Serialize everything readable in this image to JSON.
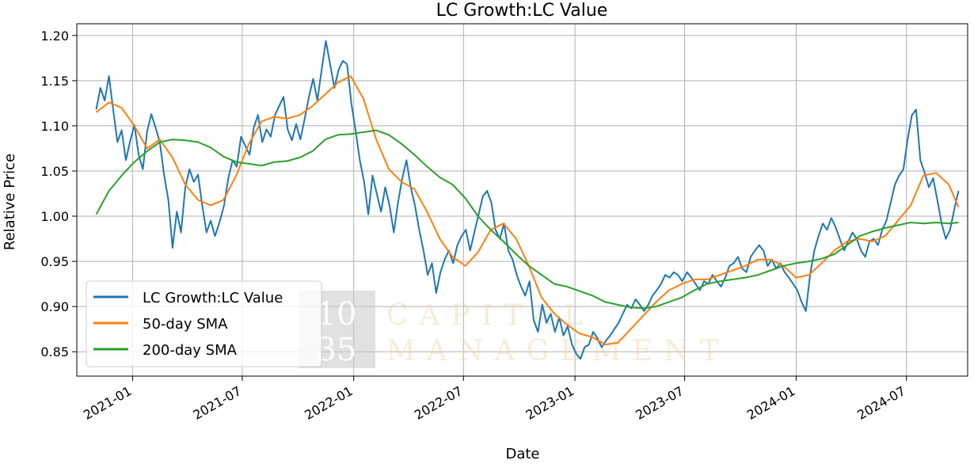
{
  "chart_data": {
    "type": "line",
    "title": "LC Growth:LC Value",
    "xlabel": "Date",
    "ylabel": "Relative Price",
    "x_range": [
      "2020-10-01",
      "2024-10-10"
    ],
    "ylim": [
      0.823,
      1.213
    ],
    "y_ticks": [
      0.85,
      0.9,
      0.95,
      1.0,
      1.05,
      1.1,
      1.15,
      1.2
    ],
    "y_tick_labels": [
      "0.85",
      "0.90",
      "0.95",
      "1.00",
      "1.05",
      "1.10",
      "1.15",
      "1.20"
    ],
    "x_ticks": [
      "2021-01-01",
      "2021-07-01",
      "2022-01-01",
      "2022-07-01",
      "2023-01-01",
      "2023-07-01",
      "2024-01-01",
      "2024-07-01"
    ],
    "x_tick_labels": [
      "2021-01",
      "2021-07",
      "2022-01",
      "2022-07",
      "2023-01",
      "2023-07",
      "2024-01",
      "2024-07"
    ],
    "grid": true,
    "legend": "lower left",
    "series": [
      {
        "name": "LC Growth:LC Value",
        "color": "#1f77b4",
        "x": [
          "2020-11-02",
          "2020-11-09",
          "2020-11-16",
          "2020-11-23",
          "2020-11-30",
          "2020-12-07",
          "2020-12-14",
          "2020-12-21",
          "2020-12-28",
          "2021-01-04",
          "2021-01-11",
          "2021-01-18",
          "2021-01-25",
          "2021-02-01",
          "2021-02-08",
          "2021-02-15",
          "2021-02-22",
          "2021-03-01",
          "2021-03-08",
          "2021-03-15",
          "2021-03-22",
          "2021-03-29",
          "2021-04-05",
          "2021-04-12",
          "2021-04-19",
          "2021-04-26",
          "2021-05-03",
          "2021-05-10",
          "2021-05-17",
          "2021-05-24",
          "2021-06-01",
          "2021-06-08",
          "2021-06-15",
          "2021-06-22",
          "2021-06-29",
          "2021-07-06",
          "2021-07-13",
          "2021-07-20",
          "2021-07-27",
          "2021-08-03",
          "2021-08-10",
          "2021-08-17",
          "2021-08-24",
          "2021-08-31",
          "2021-09-07",
          "2021-09-14",
          "2021-09-21",
          "2021-09-28",
          "2021-10-05",
          "2021-10-12",
          "2021-10-19",
          "2021-10-26",
          "2021-11-02",
          "2021-11-09",
          "2021-11-16",
          "2021-11-23",
          "2021-11-30",
          "2021-12-07",
          "2021-12-14",
          "2021-12-21",
          "2021-12-28",
          "2022-01-04",
          "2022-01-11",
          "2022-01-18",
          "2022-01-25",
          "2022-02-01",
          "2022-02-08",
          "2022-02-15",
          "2022-02-22",
          "2022-03-01",
          "2022-03-08",
          "2022-03-15",
          "2022-03-22",
          "2022-03-29",
          "2022-04-05",
          "2022-04-12",
          "2022-04-19",
          "2022-04-26",
          "2022-05-03",
          "2022-05-10",
          "2022-05-17",
          "2022-05-24",
          "2022-05-31",
          "2022-06-07",
          "2022-06-14",
          "2022-06-21",
          "2022-06-28",
          "2022-07-05",
          "2022-07-12",
          "2022-07-19",
          "2022-07-26",
          "2022-08-02",
          "2022-08-09",
          "2022-08-16",
          "2022-08-23",
          "2022-08-30",
          "2022-09-06",
          "2022-09-13",
          "2022-09-20",
          "2022-09-27",
          "2022-10-04",
          "2022-10-11",
          "2022-10-18",
          "2022-10-25",
          "2022-11-01",
          "2022-11-08",
          "2022-11-15",
          "2022-11-22",
          "2022-11-29",
          "2022-12-06",
          "2022-12-13",
          "2022-12-20",
          "2022-12-27",
          "2023-01-03",
          "2023-01-10",
          "2023-01-17",
          "2023-01-24",
          "2023-01-31",
          "2023-02-07",
          "2023-02-14",
          "2023-02-21",
          "2023-02-28",
          "2023-03-07",
          "2023-03-14",
          "2023-03-21",
          "2023-03-28",
          "2023-04-04",
          "2023-04-11",
          "2023-04-18",
          "2023-04-25",
          "2023-05-02",
          "2023-05-09",
          "2023-05-16",
          "2023-05-23",
          "2023-05-30",
          "2023-06-06",
          "2023-06-13",
          "2023-06-20",
          "2023-06-27",
          "2023-07-05",
          "2023-07-12",
          "2023-07-19",
          "2023-07-26",
          "2023-08-02",
          "2023-08-09",
          "2023-08-16",
          "2023-08-23",
          "2023-08-30",
          "2023-09-06",
          "2023-09-13",
          "2023-09-20",
          "2023-09-27",
          "2023-10-04",
          "2023-10-11",
          "2023-10-18",
          "2023-10-25",
          "2023-11-01",
          "2023-11-08",
          "2023-11-15",
          "2023-11-22",
          "2023-11-29",
          "2023-12-06",
          "2023-12-13",
          "2023-12-20",
          "2023-12-27",
          "2024-01-03",
          "2024-01-10",
          "2024-01-17",
          "2024-01-24",
          "2024-01-31",
          "2024-02-07",
          "2024-02-14",
          "2024-02-21",
          "2024-02-28",
          "2024-03-06",
          "2024-03-13",
          "2024-03-20",
          "2024-03-27",
          "2024-04-03",
          "2024-04-10",
          "2024-04-17",
          "2024-04-24",
          "2024-05-01",
          "2024-05-08",
          "2024-05-15",
          "2024-05-22",
          "2024-05-29",
          "2024-06-05",
          "2024-06-12",
          "2024-06-19",
          "2024-06-26",
          "2024-07-03",
          "2024-07-10",
          "2024-07-17",
          "2024-07-24",
          "2024-07-31",
          "2024-08-07",
          "2024-08-14",
          "2024-08-21",
          "2024-08-28",
          "2024-09-04",
          "2024-09-11",
          "2024-09-18",
          "2024-09-25"
        ],
        "y": [
          1.118,
          1.142,
          1.128,
          1.155,
          1.118,
          1.082,
          1.095,
          1.062,
          1.083,
          1.101,
          1.068,
          1.052,
          1.094,
          1.113,
          1.098,
          1.082,
          1.046,
          1.018,
          0.965,
          1.005,
          0.982,
          1.032,
          1.052,
          1.038,
          1.046,
          1.012,
          0.982,
          0.995,
          0.978,
          0.992,
          1.012,
          1.042,
          1.062,
          1.055,
          1.088,
          1.078,
          1.068,
          1.098,
          1.112,
          1.082,
          1.096,
          1.088,
          1.112,
          1.122,
          1.132,
          1.096,
          1.084,
          1.102,
          1.085,
          1.108,
          1.132,
          1.152,
          1.128,
          1.162,
          1.194,
          1.168,
          1.142,
          1.162,
          1.172,
          1.168,
          1.125,
          1.095,
          1.062,
          1.038,
          1.002,
          1.045,
          1.025,
          1.005,
          1.032,
          1.012,
          0.982,
          1.015,
          1.042,
          1.062,
          1.032,
          1.012,
          0.985,
          0.962,
          0.935,
          0.948,
          0.915,
          0.938,
          0.952,
          0.962,
          0.948,
          0.968,
          0.978,
          0.985,
          0.962,
          0.982,
          1.002,
          1.022,
          1.028,
          1.015,
          0.985,
          0.975,
          0.992,
          0.962,
          0.952,
          0.935,
          0.922,
          0.912,
          0.928,
          0.885,
          0.872,
          0.902,
          0.882,
          0.892,
          0.872,
          0.888,
          0.868,
          0.878,
          0.858,
          0.848,
          0.842,
          0.855,
          0.858,
          0.872,
          0.865,
          0.855,
          0.862,
          0.868,
          0.875,
          0.882,
          0.892,
          0.902,
          0.898,
          0.908,
          0.902,
          0.895,
          0.902,
          0.912,
          0.918,
          0.925,
          0.935,
          0.932,
          0.938,
          0.935,
          0.928,
          0.938,
          0.932,
          0.925,
          0.918,
          0.928,
          0.925,
          0.935,
          0.928,
          0.922,
          0.932,
          0.945,
          0.948,
          0.955,
          0.942,
          0.938,
          0.955,
          0.962,
          0.968,
          0.962,
          0.945,
          0.952,
          0.942,
          0.948,
          0.938,
          0.932,
          0.925,
          0.918,
          0.905,
          0.895,
          0.935,
          0.962,
          0.978,
          0.992,
          0.985,
          0.998,
          0.988,
          0.975,
          0.962,
          0.972,
          0.982,
          0.975,
          0.962,
          0.955,
          0.972,
          0.975,
          0.968,
          0.985,
          0.995,
          1.015,
          1.035,
          1.045,
          1.052,
          1.085,
          1.112,
          1.118,
          1.062,
          1.048,
          1.032,
          1.042,
          1.018,
          0.992,
          0.975,
          0.985,
          1.008,
          1.028
        ]
      },
      {
        "name": "50-day SMA",
        "color": "#ff7f0e",
        "x": [
          "2020-11-02",
          "2020-11-23",
          "2020-12-14",
          "2021-01-04",
          "2021-01-25",
          "2021-02-15",
          "2021-03-08",
          "2021-03-29",
          "2021-04-19",
          "2021-05-10",
          "2021-05-31",
          "2021-06-21",
          "2021-07-12",
          "2021-08-02",
          "2021-08-23",
          "2021-09-13",
          "2021-10-04",
          "2021-10-25",
          "2021-11-15",
          "2021-12-06",
          "2021-12-27",
          "2022-01-17",
          "2022-02-07",
          "2022-02-28",
          "2022-03-21",
          "2022-04-11",
          "2022-05-02",
          "2022-05-23",
          "2022-06-13",
          "2022-07-04",
          "2022-07-25",
          "2022-08-15",
          "2022-09-05",
          "2022-09-26",
          "2022-10-17",
          "2022-11-07",
          "2022-11-28",
          "2022-12-19",
          "2023-01-09",
          "2023-01-30",
          "2023-02-20",
          "2023-03-13",
          "2023-04-03",
          "2023-04-24",
          "2023-05-15",
          "2023-06-05",
          "2023-06-26",
          "2023-07-17",
          "2023-08-07",
          "2023-08-28",
          "2023-09-18",
          "2023-10-09",
          "2023-10-30",
          "2023-11-20",
          "2023-12-11",
          "2024-01-01",
          "2024-01-22",
          "2024-02-12",
          "2024-03-04",
          "2024-03-25",
          "2024-04-15",
          "2024-05-06",
          "2024-05-27",
          "2024-06-17",
          "2024-07-08",
          "2024-07-29",
          "2024-08-19",
          "2024-09-09",
          "2024-09-25"
        ],
        "y": [
          1.115,
          1.126,
          1.12,
          1.1,
          1.075,
          1.085,
          1.065,
          1.035,
          1.018,
          1.012,
          1.018,
          1.045,
          1.08,
          1.105,
          1.11,
          1.108,
          1.112,
          1.122,
          1.135,
          1.148,
          1.155,
          1.13,
          1.085,
          1.052,
          1.038,
          1.03,
          1.005,
          0.975,
          0.955,
          0.945,
          0.96,
          0.985,
          0.992,
          0.975,
          0.945,
          0.91,
          0.892,
          0.88,
          0.87,
          0.866,
          0.858,
          0.86,
          0.875,
          0.89,
          0.905,
          0.918,
          0.925,
          0.93,
          0.93,
          0.935,
          0.94,
          0.945,
          0.952,
          0.952,
          0.945,
          0.932,
          0.935,
          0.948,
          0.962,
          0.972,
          0.975,
          0.972,
          0.978,
          0.995,
          1.012,
          1.045,
          1.048,
          1.035,
          1.01
        ]
      },
      {
        "name": "200-day SMA",
        "color": "#2ca02c",
        "x": [
          "2020-11-02",
          "2020-11-23",
          "2020-12-14",
          "2021-01-04",
          "2021-01-25",
          "2021-02-15",
          "2021-03-08",
          "2021-03-29",
          "2021-04-19",
          "2021-05-10",
          "2021-05-31",
          "2021-06-21",
          "2021-07-12",
          "2021-08-02",
          "2021-08-23",
          "2021-09-13",
          "2021-10-04",
          "2021-10-25",
          "2021-11-15",
          "2021-12-06",
          "2021-12-27",
          "2022-01-17",
          "2022-02-07",
          "2022-02-28",
          "2022-03-21",
          "2022-04-11",
          "2022-05-02",
          "2022-05-23",
          "2022-06-13",
          "2022-07-04",
          "2022-07-25",
          "2022-08-15",
          "2022-09-05",
          "2022-09-26",
          "2022-10-17",
          "2022-11-07",
          "2022-11-28",
          "2022-12-19",
          "2023-01-09",
          "2023-01-30",
          "2023-02-20",
          "2023-03-13",
          "2023-04-03",
          "2023-04-24",
          "2023-05-15",
          "2023-06-05",
          "2023-06-26",
          "2023-07-17",
          "2023-08-07",
          "2023-08-28",
          "2023-09-18",
          "2023-10-09",
          "2023-10-30",
          "2023-11-20",
          "2023-12-11",
          "2024-01-01",
          "2024-01-22",
          "2024-02-12",
          "2024-03-04",
          "2024-03-25",
          "2024-04-15",
          "2024-05-06",
          "2024-05-27",
          "2024-06-17",
          "2024-07-08",
          "2024-07-29",
          "2024-08-19",
          "2024-09-09",
          "2024-09-25"
        ],
        "y": [
          1.002,
          1.028,
          1.045,
          1.06,
          1.072,
          1.082,
          1.085,
          1.084,
          1.082,
          1.076,
          1.066,
          1.06,
          1.058,
          1.056,
          1.06,
          1.061,
          1.065,
          1.072,
          1.085,
          1.09,
          1.091,
          1.093,
          1.095,
          1.09,
          1.08,
          1.068,
          1.055,
          1.043,
          1.035,
          1.02,
          1.0,
          0.985,
          0.972,
          0.958,
          0.945,
          0.935,
          0.925,
          0.922,
          0.917,
          0.912,
          0.905,
          0.902,
          0.899,
          0.898,
          0.9,
          0.905,
          0.91,
          0.918,
          0.925,
          0.928,
          0.93,
          0.932,
          0.935,
          0.94,
          0.945,
          0.948,
          0.95,
          0.953,
          0.958,
          0.968,
          0.978,
          0.983,
          0.987,
          0.99,
          0.993,
          0.992,
          0.993,
          0.992,
          0.993
        ]
      }
    ]
  },
  "watermark": {
    "number_top": "10",
    "number_bottom": "35",
    "word_top": "CAPITAL",
    "word_bottom": "MANAGEMENT"
  }
}
